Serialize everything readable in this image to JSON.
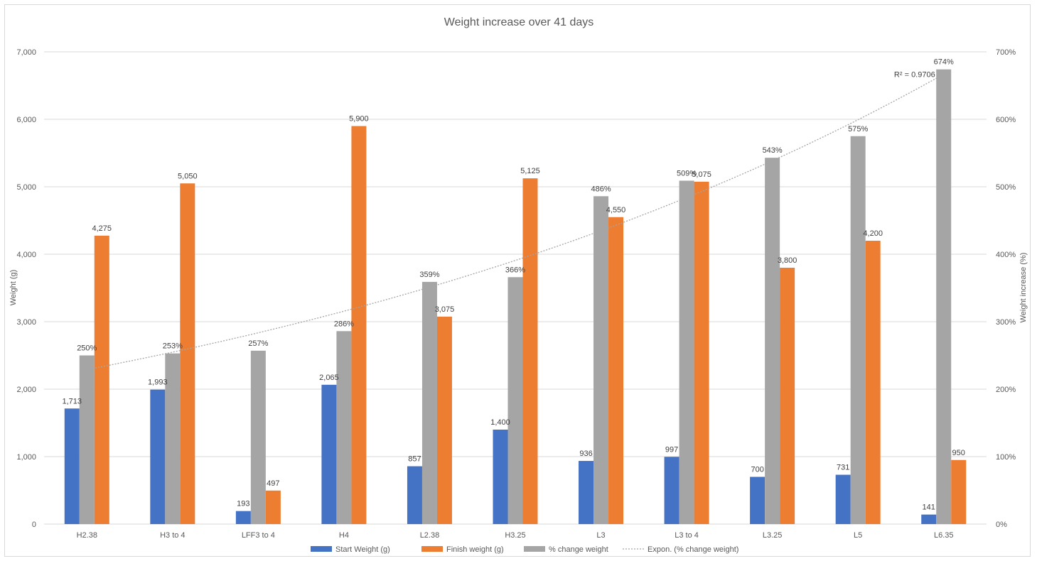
{
  "chart_data": {
    "type": "bar",
    "title": "Weight increase over 41 days",
    "categories": [
      "H2.38",
      "H3 to 4",
      "LFF3 to 4",
      "H4",
      "L2.38",
      "H3.25",
      "L3",
      "L3 to 4",
      "L3.25",
      "L5",
      "L6.35"
    ],
    "ylabel": "Weight (g)",
    "y2label": "Weight increase (%)",
    "ylim": [
      0,
      7000
    ],
    "y2lim": [
      0,
      700
    ],
    "yticks": [
      "0",
      "1,000",
      "2,000",
      "3,000",
      "4,000",
      "5,000",
      "6,000",
      "7,000"
    ],
    "y2ticks": [
      "0%",
      "100%",
      "200%",
      "300%",
      "400%",
      "500%",
      "600%",
      "700%"
    ],
    "grid": true,
    "legend_position": "bottom",
    "series": [
      {
        "name": "Start Weight (g)",
        "axis": "primary",
        "color": "#4472c4",
        "values": [
          1713,
          1993,
          193,
          2065,
          857,
          1400,
          936,
          997,
          700,
          731,
          141
        ],
        "labels": [
          "1,713",
          "1,993",
          "193",
          "2,065",
          "857",
          "1,400",
          "936",
          "997",
          "700",
          "731",
          "141"
        ]
      },
      {
        "name": "% change weight",
        "axis": "secondary",
        "color": "#a5a5a5",
        "values": [
          250,
          253,
          257,
          286,
          359,
          366,
          486,
          509,
          543,
          575,
          674
        ],
        "labels": [
          "250%",
          "253%",
          "257%",
          "286%",
          "359%",
          "366%",
          "486%",
          "509%",
          "543%",
          "575%",
          "674%"
        ]
      },
      {
        "name": "Finish weight (g)",
        "axis": "primary",
        "color": "#ed7d31",
        "values": [
          4275,
          5050,
          497,
          5900,
          3075,
          5125,
          4550,
          5075,
          3800,
          4200,
          950
        ],
        "labels": [
          "4,275",
          "5,050",
          "497",
          "5,900",
          "3,075",
          "5,125",
          "4,550",
          "5,075",
          "3,800",
          "4,200",
          "950"
        ]
      }
    ],
    "trendline": {
      "name": "Expon. (% change weight)",
      "type": "exponential",
      "series": "% change weight",
      "color": "#a5a5a5",
      "r2_label": "R² = 0.9706",
      "start_value": 229,
      "end_value": 667
    },
    "legend_order": [
      "Start Weight (g)",
      "Finish weight (g)",
      "% change weight",
      "Expon. (% change weight)"
    ]
  }
}
